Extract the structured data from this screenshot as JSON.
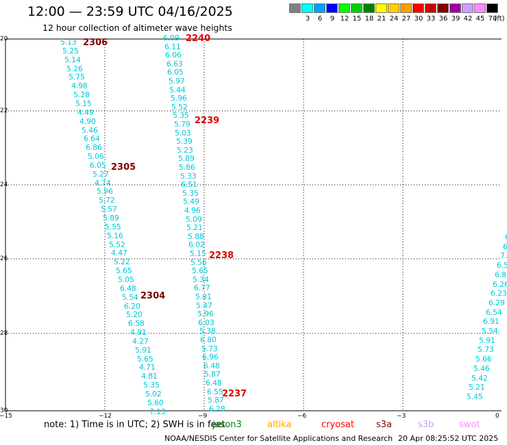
{
  "header": {
    "title": "12:00 — 23:59 UTC 04/16/2025",
    "subtitle": "12 hour collection of altimeter wave heights"
  },
  "scale": {
    "unit": "(ft)",
    "colors": [
      "#808080",
      "#00ffff",
      "#00a0ff",
      "#0000ff",
      "#00ff00",
      "#00d000",
      "#008000",
      "#ffff00",
      "#ffd000",
      "#ffa000",
      "#ff0000",
      "#d00000",
      "#800000",
      "#a000a0",
      "#c8a0ff",
      "#ff88ff",
      "#000000"
    ],
    "labels": [
      "3",
      "6",
      "9",
      "12",
      "15",
      "18",
      "21",
      "24",
      "27",
      "30",
      "33",
      "36",
      "39",
      "42",
      "45",
      "70"
    ]
  },
  "map": {
    "lat_labels": [
      "20",
      "22",
      "24",
      "26",
      "28",
      "30"
    ],
    "lon_labels": [
      "−15",
      "−12",
      "−9",
      "−6",
      "−3",
      "0"
    ]
  },
  "tracks": [
    {
      "pass_label": "2306",
      "pass_color": "#800000",
      "values": [
        "5.13",
        "5.25",
        "5.14",
        "5.26",
        "5.75",
        "4.98",
        "5.28",
        "5.15",
        "4.49",
        "4.90",
        "5.46",
        "6.64",
        "6.86",
        "5.06",
        "6.05",
        "5.27",
        "4.74",
        "5.96",
        "5.72",
        "5.57",
        "5.89",
        "5.55",
        "5.16",
        "5.52",
        "4.47",
        "5.22",
        "5.65",
        "5.05",
        "6.48",
        "5.54",
        "6.20",
        "5.20",
        "6.58",
        "4.91",
        "4.27",
        "5.91",
        "5.65",
        "4.71",
        "4.81",
        "5.35",
        "5.02",
        "5.60",
        "7.13"
      ]
    },
    {
      "pass_label": "2305",
      "pass_color": "#800000"
    },
    {
      "pass_label": "2304",
      "pass_color": "#800000"
    },
    {
      "pass_label": "2240",
      "pass_color": "#e00000",
      "values": [
        "6.09",
        "6.11",
        "6.06",
        "6.63",
        "6.05",
        "5.97",
        "5.44",
        "5.96",
        "5.52",
        "5.35",
        "5.79",
        "5.03",
        "5.39",
        "5.23",
        "5.89",
        "5.86",
        "5.33",
        "6.51",
        "5.35",
        "5.49",
        "4.96",
        "5.09",
        "5.21",
        "5.88",
        "6.02",
        "5.15",
        "5.56",
        "5.65",
        "5.34",
        "6.77",
        "5.81",
        "5.47",
        "5.96",
        "6.03",
        "5.38",
        "6.80",
        "5.73",
        "6.96",
        "6.48",
        "5.87",
        "6.48",
        "6.55",
        "5.87",
        "6.28"
      ]
    },
    {
      "pass_label": "2239",
      "pass_color": "#e00000"
    },
    {
      "pass_label": "2238",
      "pass_color": "#e00000"
    },
    {
      "pass_label": "2237",
      "pass_color": "#e00000"
    },
    {
      "pass_label": "",
      "values": [
        "6",
        "6",
        "7.",
        "6.5",
        "6.8",
        "6.26",
        "6.23",
        "6.29",
        "6.54",
        "6.91",
        "5.54",
        "5.91",
        "5.73",
        "5.66",
        "5.46",
        "5.42",
        "5.21",
        "5.45"
      ]
    }
  ],
  "footer": {
    "note": "note:  1) Time is in UTC; 2) SWH is in feet",
    "legend": [
      {
        "label": "jason3",
        "color": "#008000"
      },
      {
        "label": "altika",
        "color": "#ffa000"
      },
      {
        "label": "cryosat",
        "color": "#ff0000"
      },
      {
        "label": "s3a",
        "color": "#800000"
      },
      {
        "label": "s3b",
        "color": "#c8a0ff"
      },
      {
        "label": "swot",
        "color": "#ff88ff"
      }
    ],
    "credit": "NOAA/NESDIS Center for Satellite Applications and Research",
    "timestamp": "20 Apr 08:25:52 UTC 2025"
  }
}
